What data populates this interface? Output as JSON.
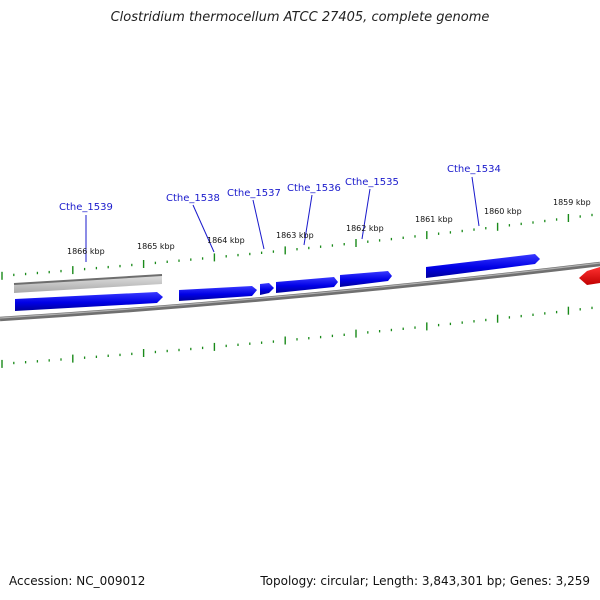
{
  "title": "Clostridium thermocellum ATCC 27405, complete genome",
  "footer": {
    "accession": "Accession: NC_009012",
    "summary": "Topology: circular; Length: 3,843,301 bp; Genes: 3,259"
  },
  "colors": {
    "backbone": "#808080",
    "gene_forward": "#0000e6",
    "gene_other": "#e60000",
    "pseudo": "#b8b8b8",
    "tick": "#1a8a1a",
    "label": "#1a1acc"
  },
  "scale_labels": [
    "1866 kbp",
    "1865 kbp",
    "1864 kbp",
    "1863 kbp",
    "1862 kbp",
    "1861 kbp",
    "1860 kbp",
    "1859 kbp"
  ],
  "gene_labels": [
    "Cthe_1539",
    "Cthe_1538",
    "Cthe_1537",
    "Cthe_1536",
    "Cthe_1535",
    "Cthe_1534"
  ]
}
